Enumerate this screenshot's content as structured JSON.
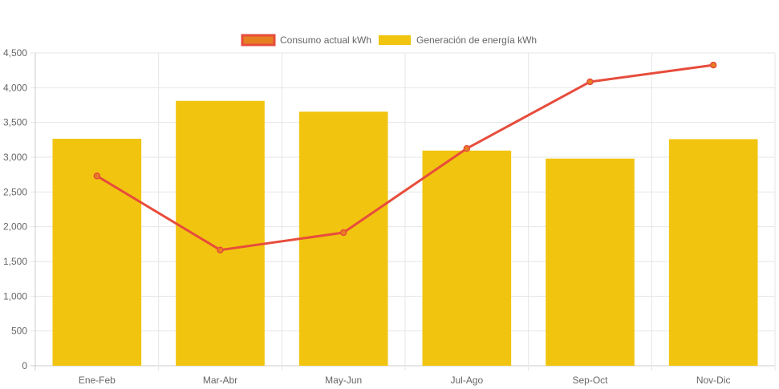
{
  "chart_data": {
    "type": "bar",
    "categories": [
      "Ene-Feb",
      "Mar-Abr",
      "May-Jun",
      "Jul-Ago",
      "Sep-Oct",
      "Nov-Dic"
    ],
    "series": [
      {
        "name": "Consumo actual kWh",
        "type": "line",
        "color": "#e74c3c",
        "fill_color": "#e67e22",
        "values": [
          2730,
          1665,
          1915,
          3125,
          4085,
          4325
        ]
      },
      {
        "name": "Generación de energía kWh",
        "type": "bar",
        "color": "#f1c40f",
        "values": [
          3265,
          3810,
          3655,
          3095,
          2980,
          3260
        ]
      }
    ],
    "ylim": [
      0,
      4500
    ],
    "yticks": [
      "0",
      "500",
      "1,000",
      "1,500",
      "2,000",
      "2,500",
      "3,000",
      "3,500",
      "4,000",
      "4,500"
    ],
    "grid": true,
    "legend": "top-center"
  }
}
